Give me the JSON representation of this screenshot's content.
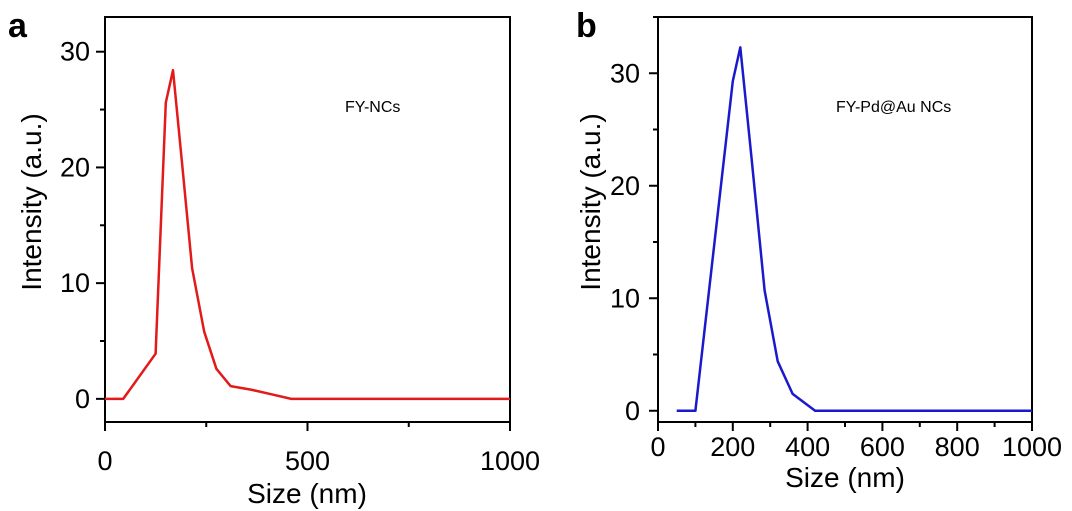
{
  "chart_data": [
    {
      "panel": "a",
      "type": "line",
      "xlabel": "Size (nm)",
      "ylabel": "Intensity (a.u.)",
      "xlim": [
        0,
        1000
      ],
      "ylim": [
        -2,
        33
      ],
      "xticks": [
        0,
        500,
        1000
      ],
      "xtick_labels": [
        "0",
        "500",
        "1000"
      ],
      "yticks": [
        0,
        10,
        20,
        30
      ],
      "ytick_labels": [
        "0",
        "10",
        "20",
        "30"
      ],
      "grid": false,
      "annotation": "FY-NCs",
      "series": [
        {
          "color": "#e31a1a",
          "x": [
            0,
            45,
            125,
            150,
            168,
            190,
            215,
            245,
            275,
            310,
            360,
            410,
            460,
            520,
            600,
            700,
            800,
            900,
            1000
          ],
          "y": [
            0,
            0,
            3.9,
            25.6,
            28.4,
            20.5,
            11.3,
            5.8,
            2.6,
            1.1,
            0.8,
            0.4,
            0,
            0,
            0,
            0,
            0,
            0,
            0
          ]
        }
      ]
    },
    {
      "panel": "b",
      "type": "line",
      "xlabel": "Size (nm)",
      "ylabel": "Intensity (a.u.)",
      "xlim": [
        0,
        1000
      ],
      "ylim": [
        -1,
        35
      ],
      "xticks": [
        0,
        200,
        400,
        600,
        800,
        1000
      ],
      "xtick_labels": [
        "0",
        "200",
        "400",
        "600",
        "800",
        "1000"
      ],
      "yticks": [
        0,
        10,
        20,
        30
      ],
      "ytick_labels": [
        "0",
        "10",
        "20",
        "30"
      ],
      "grid": false,
      "annotation": "FY-Pd@Au NCs",
      "series": [
        {
          "color": "#1a1acc",
          "x": [
            50,
            100,
            200,
            220,
            250,
            285,
            320,
            360,
            420,
            500,
            600,
            700,
            800,
            900,
            1000
          ],
          "y": [
            0,
            0,
            29.3,
            32.3,
            22.5,
            10.7,
            4.4,
            1.5,
            0,
            0,
            0,
            0,
            0,
            0,
            0
          ]
        }
      ]
    }
  ]
}
